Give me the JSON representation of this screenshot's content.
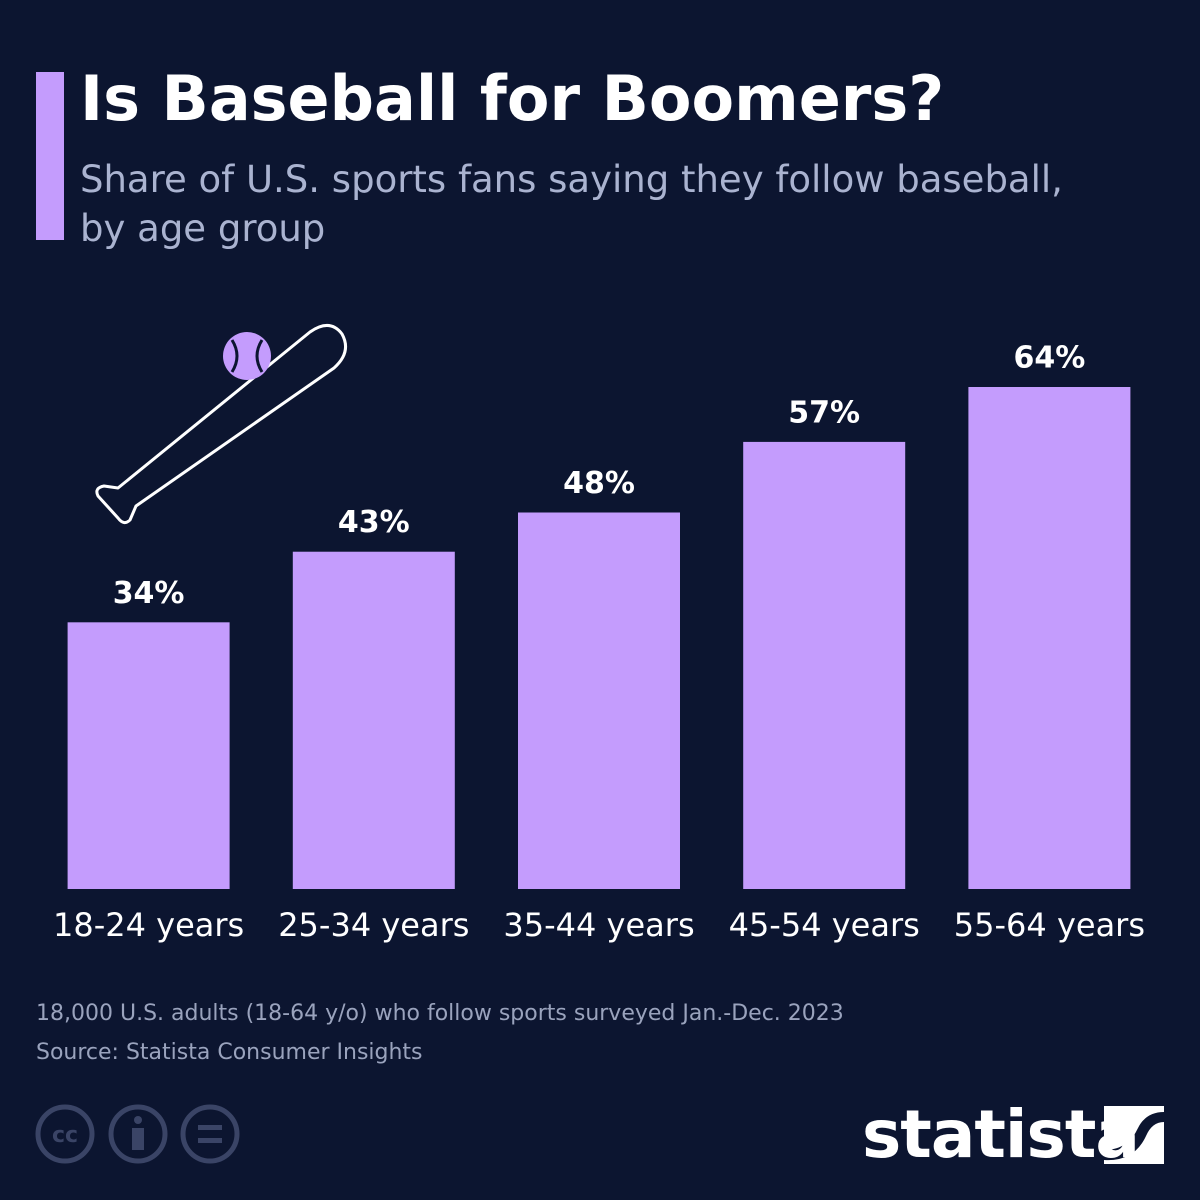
{
  "chart_data": {
    "type": "bar",
    "title": "Is Baseball for Boomers?",
    "subtitle": "Share of U.S. sports fans saying they follow baseball, by age group",
    "categories": [
      "18-24 years",
      "25-34 years",
      "35-44 years",
      "45-54 years",
      "55-64 years"
    ],
    "values": [
      34,
      43,
      48,
      57,
      64
    ],
    "value_labels": [
      "34%",
      "43%",
      "48%",
      "57%",
      "64%"
    ],
    "color": "#c49cfd",
    "note": "18,000 U.S. adults (18-64 y/o) who follow sports surveyed Jan.-Dec. 2023",
    "source": "Source: Statista Consumer Insights"
  },
  "logo": "statista"
}
